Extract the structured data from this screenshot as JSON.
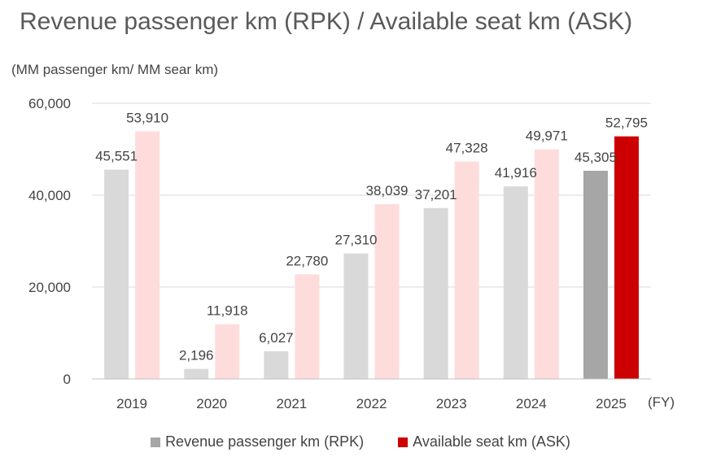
{
  "chart_data": {
    "type": "bar",
    "title": "Revenue passenger km (RPK) / Available seat km (ASK)",
    "ylabel": "(MM passenger km/ MM sear km)",
    "xlabel": "(FY)",
    "categories": [
      "2019",
      "2020",
      "2021",
      "2022",
      "2023",
      "2024",
      "2025"
    ],
    "ylim": [
      0,
      60000
    ],
    "yticks": [
      0,
      20000,
      40000,
      60000
    ],
    "ytick_labels": [
      "0",
      "20,000",
      "40,000",
      "60,000"
    ],
    "grid": true,
    "legend_position": "bottom",
    "series": [
      {
        "name": "Revenue passenger km (RPK)",
        "values": [
          45551,
          2196,
          6027,
          27310,
          37201,
          41916,
          45305
        ],
        "labels": [
          "45,551",
          "2,196",
          "6,027",
          "27,310",
          "37,201",
          "41,916",
          "45,305"
        ],
        "color": "#d9d9d9",
        "highlight_color": "#a6a6a6"
      },
      {
        "name": "Available seat km (ASK)",
        "values": [
          53910,
          11918,
          22780,
          38039,
          47328,
          49971,
          52795
        ],
        "labels": [
          "53,910",
          "11,918",
          "22,780",
          "38,039",
          "47,328",
          "49,971",
          "52,795"
        ],
        "color": "#ffdcdc",
        "highlight_color": "#cc0000"
      }
    ],
    "highlight_category": "2025"
  }
}
